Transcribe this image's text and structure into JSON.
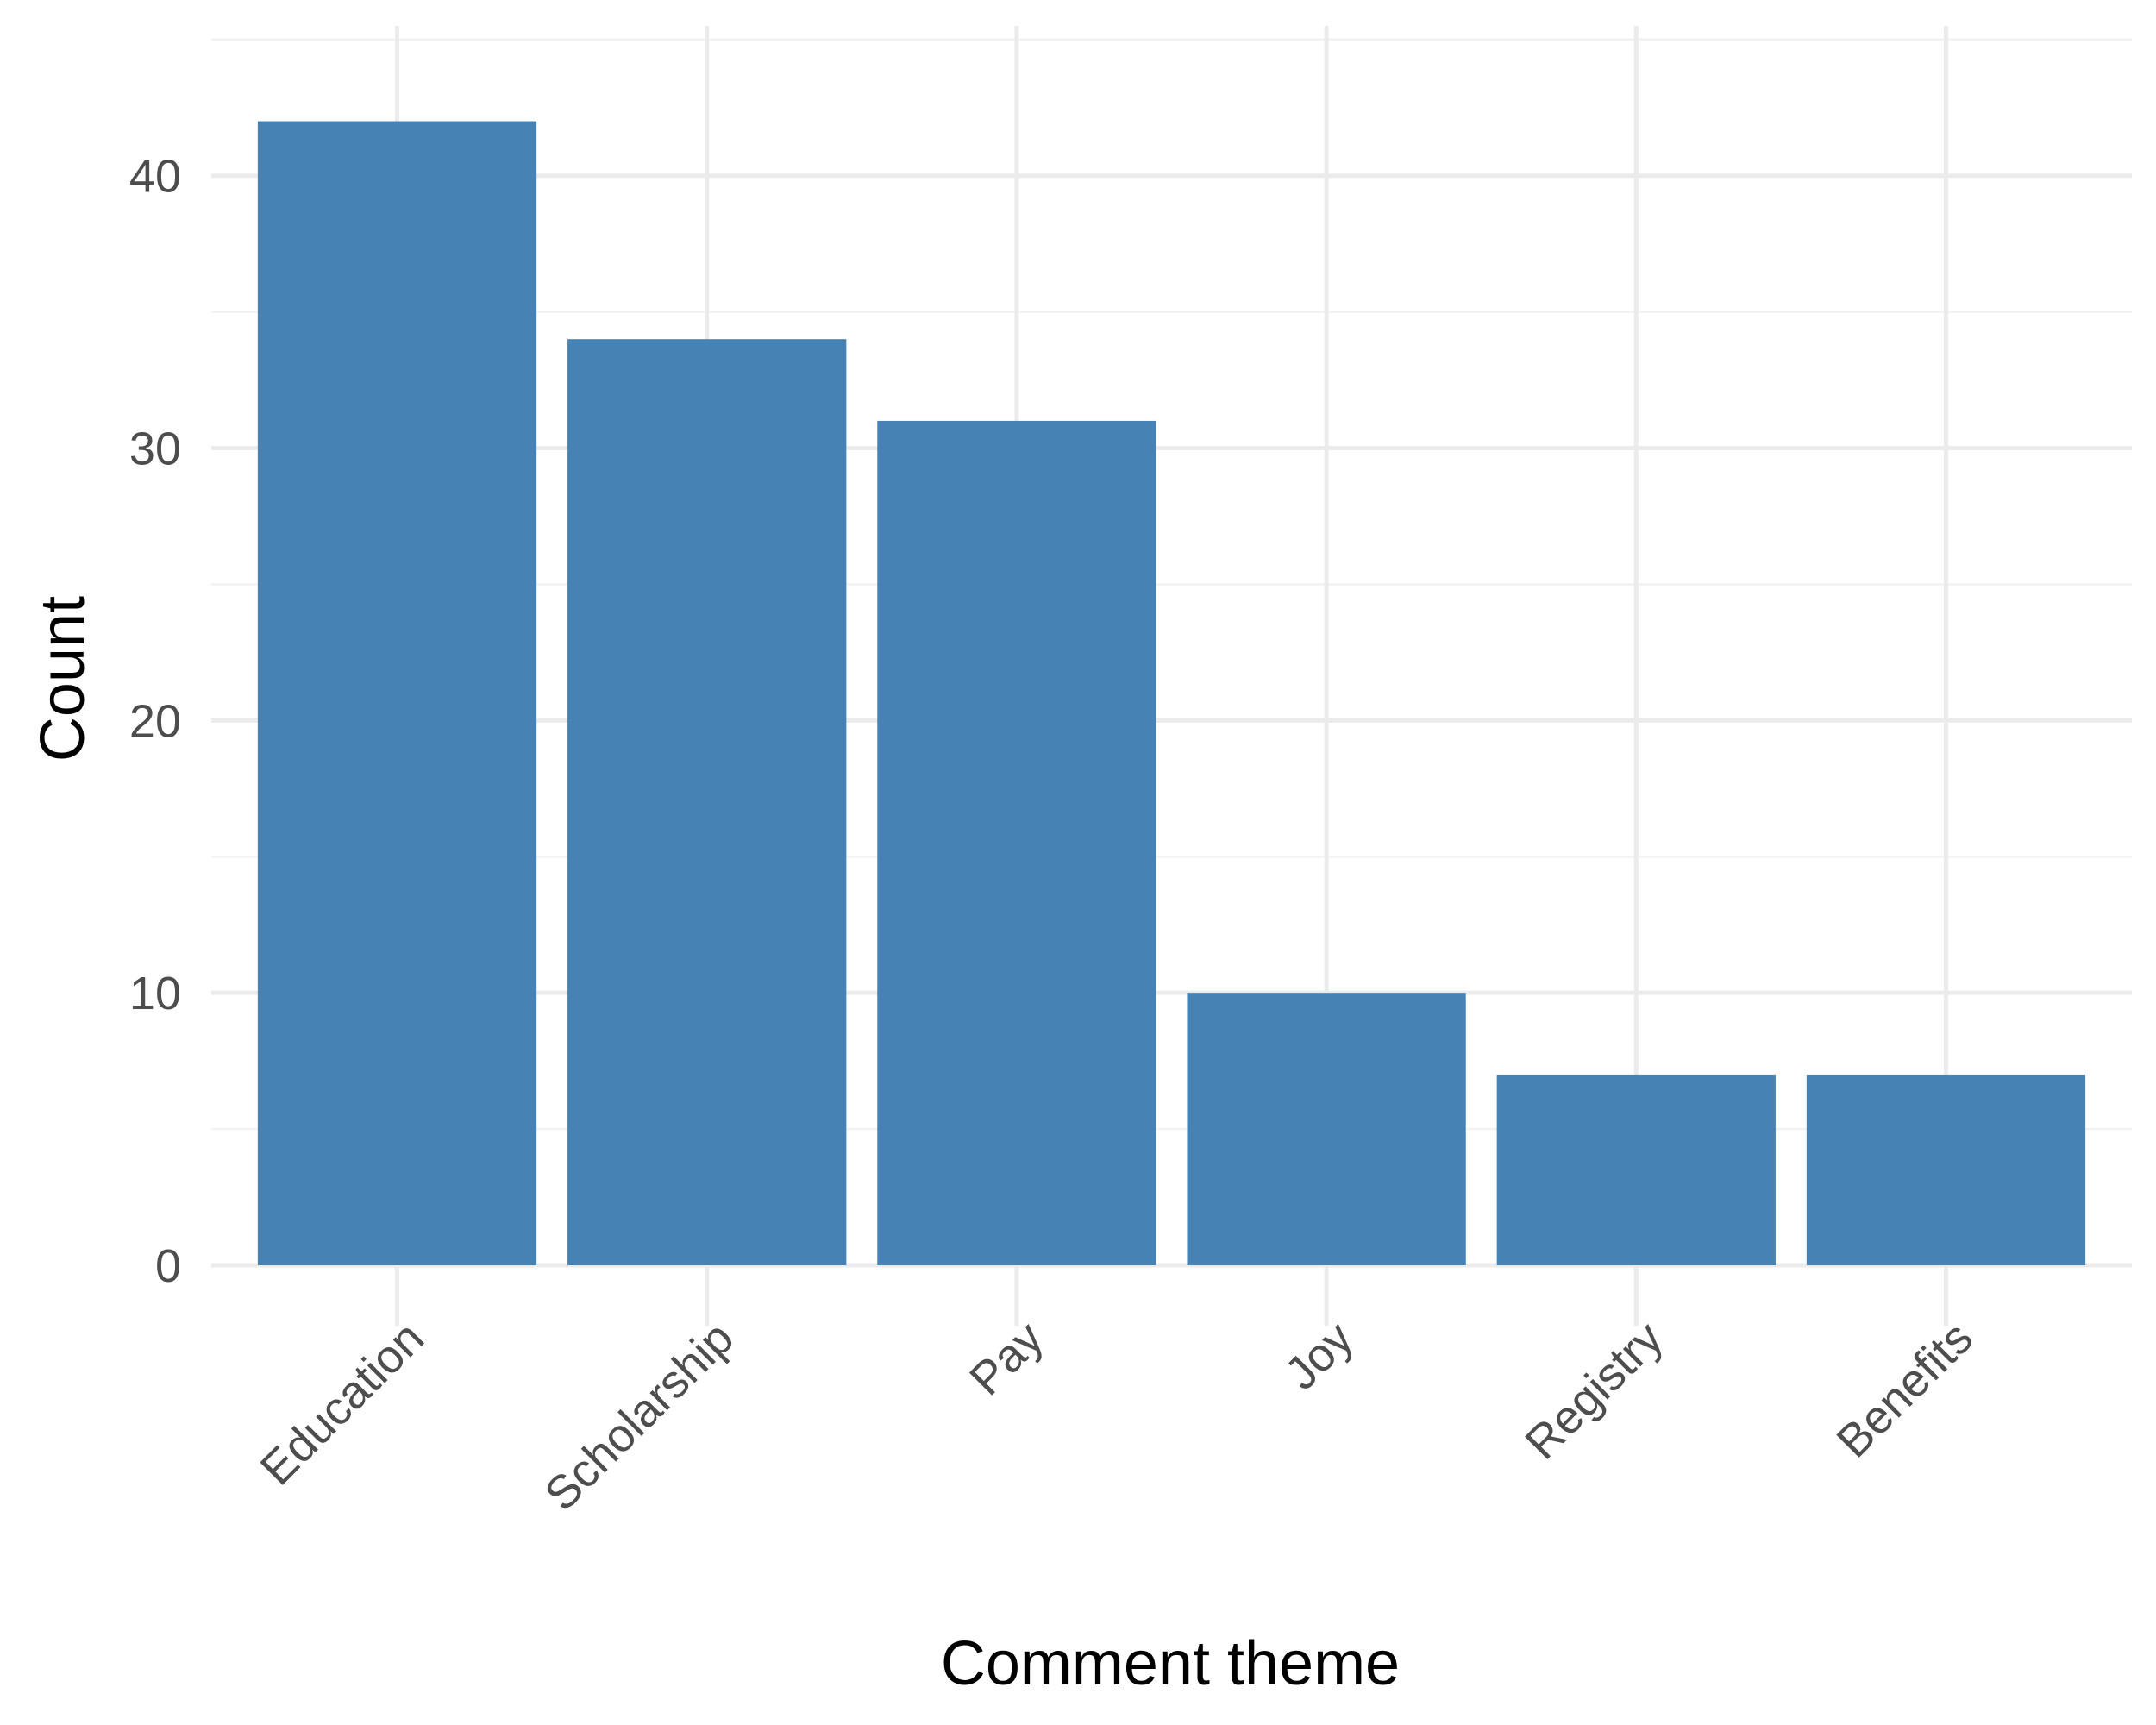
{
  "chart_data": {
    "type": "bar",
    "title": "",
    "xlabel": "Comment theme",
    "ylabel": "Count",
    "categories": [
      "Education",
      "Scholarship",
      "Pay",
      "Joy",
      "Registry",
      "Benefits"
    ],
    "values": [
      42,
      34,
      31,
      10,
      7,
      7
    ],
    "ylim": [
      0,
      45.5
    ],
    "yticks": [
      0,
      10,
      20,
      30,
      40
    ],
    "grid": true,
    "legend": "none",
    "bar_color": "#4682b4"
  }
}
